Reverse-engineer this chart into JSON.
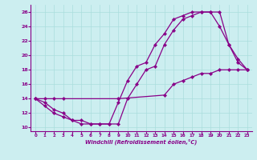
{
  "xlabel": "Windchill (Refroidissement éolien,°C)",
  "xlim": [
    -0.5,
    23.5
  ],
  "ylim": [
    9.5,
    27
  ],
  "xticks": [
    0,
    1,
    2,
    3,
    4,
    5,
    6,
    7,
    8,
    9,
    10,
    11,
    12,
    13,
    14,
    15,
    16,
    17,
    18,
    19,
    20,
    21,
    22,
    23
  ],
  "yticks": [
    10,
    12,
    14,
    16,
    18,
    20,
    22,
    24,
    26
  ],
  "bg_color": "#cceef0",
  "line_color": "#880088",
  "grid_color": "#aadddd",
  "line1_x": [
    0,
    1,
    2,
    3,
    4,
    5,
    6,
    7,
    8,
    9,
    10,
    11,
    12,
    13,
    14,
    15,
    16,
    17,
    18,
    19,
    20,
    21,
    22,
    23
  ],
  "line1_y": [
    14,
    13.5,
    12.5,
    12,
    11,
    10.5,
    10.5,
    10.5,
    10.5,
    13.5,
    16.5,
    18.5,
    19,
    21.5,
    23,
    25,
    25.5,
    26,
    26,
    26,
    26,
    21.5,
    19.5,
    18
  ],
  "line2_x": [
    0,
    1,
    2,
    3,
    4,
    5,
    6,
    7,
    8,
    9,
    10,
    11,
    12,
    13,
    14,
    15,
    16,
    17,
    18,
    19,
    20,
    21,
    22,
    23
  ],
  "line2_y": [
    14,
    13,
    12,
    11.5,
    11,
    11,
    10.5,
    10.5,
    10.5,
    10.5,
    14,
    16,
    18,
    18.5,
    21.5,
    23.5,
    25,
    25.5,
    26,
    26,
    24,
    21.5,
    19,
    18
  ],
  "line3_x": [
    0,
    1,
    2,
    3,
    9,
    14,
    15,
    16,
    17,
    18,
    19,
    20,
    21,
    22,
    23
  ],
  "line3_y": [
    14,
    14,
    14,
    14,
    14,
    14.5,
    16,
    16.5,
    17,
    17.5,
    17.5,
    18,
    18,
    18,
    18
  ]
}
